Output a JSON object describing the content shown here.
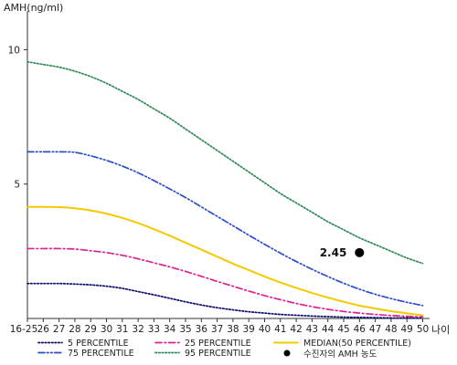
{
  "chart_data": {
    "type": "line",
    "ylabel": "AMH(ng/ml)",
    "xlabel": "나이",
    "ylim": [
      0,
      11
    ],
    "yticks": [
      5,
      10
    ],
    "categories": [
      "16-25",
      "26",
      "27",
      "28",
      "29",
      "30",
      "31",
      "32",
      "33",
      "34",
      "35",
      "36",
      "37",
      "38",
      "39",
      "40",
      "41",
      "42",
      "43",
      "44",
      "45",
      "46",
      "47",
      "48",
      "49",
      "50"
    ],
    "grid": false,
    "legend_position": "bottom",
    "series": [
      {
        "name": "5 PERCENTILE",
        "color": "#0a0a6e",
        "dash": "dotted",
        "values": [
          1.3,
          1.3,
          1.3,
          1.28,
          1.25,
          1.2,
          1.12,
          1.0,
          0.88,
          0.75,
          0.62,
          0.5,
          0.4,
          0.32,
          0.25,
          0.2,
          0.15,
          0.12,
          0.09,
          0.07,
          0.05,
          0.04,
          0.03,
          0.02,
          0.02,
          0.01
        ]
      },
      {
        "name": "25 PERCENTILE",
        "color": "#e0208c",
        "dash": "dashdot",
        "values": [
          2.6,
          2.6,
          2.6,
          2.58,
          2.52,
          2.45,
          2.35,
          2.22,
          2.07,
          1.92,
          1.75,
          1.57,
          1.38,
          1.2,
          1.02,
          0.85,
          0.7,
          0.56,
          0.44,
          0.34,
          0.26,
          0.2,
          0.15,
          0.11,
          0.08,
          0.06
        ]
      },
      {
        "name": "MEDIAN(50 PERCENTILE)",
        "color": "#f5c800",
        "dash": "solid",
        "values": [
          4.15,
          4.15,
          4.14,
          4.1,
          4.02,
          3.9,
          3.74,
          3.55,
          3.32,
          3.08,
          2.82,
          2.56,
          2.3,
          2.04,
          1.8,
          1.56,
          1.34,
          1.14,
          0.95,
          0.78,
          0.62,
          0.48,
          0.37,
          0.27,
          0.19,
          0.12
        ]
      },
      {
        "name": "75 PERCENTILE",
        "color": "#2a4fc8",
        "dash": "dashdotdot",
        "values": [
          6.2,
          6.2,
          6.2,
          6.18,
          6.05,
          5.88,
          5.67,
          5.42,
          5.13,
          4.82,
          4.5,
          4.15,
          3.8,
          3.45,
          3.1,
          2.76,
          2.43,
          2.12,
          1.83,
          1.56,
          1.31,
          1.09,
          0.9,
          0.74,
          0.6,
          0.48
        ]
      },
      {
        "name": "95 PERCENTILE",
        "color": "#2e8b57",
        "dash": "dotted",
        "values": [
          9.55,
          9.45,
          9.35,
          9.2,
          9.0,
          8.75,
          8.45,
          8.15,
          7.8,
          7.45,
          7.05,
          6.65,
          6.25,
          5.85,
          5.45,
          5.05,
          4.65,
          4.3,
          3.95,
          3.6,
          3.3,
          3.0,
          2.75,
          2.5,
          2.25,
          2.05
        ]
      }
    ],
    "point": {
      "label": "수진자의 AMH 농도",
      "x": "46",
      "y": 2.45,
      "annotation": "2.45",
      "color": "#000000"
    }
  }
}
